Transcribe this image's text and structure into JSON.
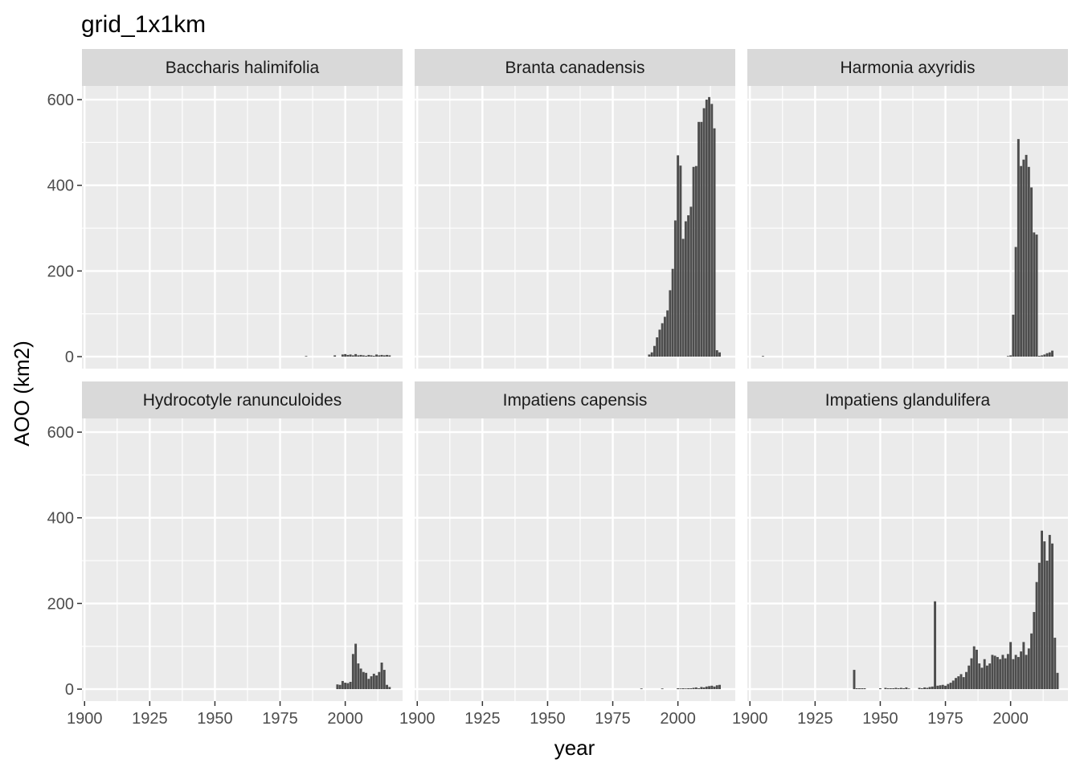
{
  "chart_data": {
    "type": "bar",
    "title": "grid_1x1km",
    "xlabel": "year",
    "ylabel": "AOO (km2)",
    "xlim": [
      1899,
      2022
    ],
    "ylim": [
      -28,
      632
    ],
    "x_ticks": [
      1900,
      1925,
      1950,
      1975,
      2000
    ],
    "y_ticks": [
      0,
      200,
      400,
      600
    ],
    "grid": true,
    "facets": [
      {
        "name": "Baccharis halimifolia",
        "bars": [
          [
            1985,
            1
          ],
          [
            1996,
            3
          ],
          [
            1999,
            5
          ],
          [
            2000,
            6
          ],
          [
            2001,
            4
          ],
          [
            2002,
            5
          ],
          [
            2003,
            3
          ],
          [
            2004,
            6
          ],
          [
            2005,
            3
          ],
          [
            2006,
            4
          ],
          [
            2007,
            3
          ],
          [
            2008,
            2
          ],
          [
            2009,
            4
          ],
          [
            2010,
            3
          ],
          [
            2011,
            2
          ],
          [
            2012,
            5
          ],
          [
            2013,
            3
          ],
          [
            2014,
            4
          ],
          [
            2015,
            3
          ],
          [
            2016,
            4
          ],
          [
            2017,
            3
          ]
        ]
      },
      {
        "name": "Branta canadensis",
        "bars": [
          [
            1989,
            5
          ],
          [
            1990,
            10
          ],
          [
            1991,
            25
          ],
          [
            1992,
            45
          ],
          [
            1993,
            63
          ],
          [
            1994,
            78
          ],
          [
            1995,
            93
          ],
          [
            1996,
            108
          ],
          [
            1997,
            155
          ],
          [
            1998,
            205
          ],
          [
            1999,
            318
          ],
          [
            2000,
            470
          ],
          [
            2001,
            446
          ],
          [
            2002,
            275
          ],
          [
            2003,
            316
          ],
          [
            2004,
            330
          ],
          [
            2005,
            350
          ],
          [
            2006,
            443
          ],
          [
            2007,
            445
          ],
          [
            2008,
            548
          ],
          [
            2009,
            548
          ],
          [
            2010,
            580
          ],
          [
            2011,
            600
          ],
          [
            2012,
            606
          ],
          [
            2013,
            590
          ],
          [
            2014,
            533
          ],
          [
            2015,
            15
          ],
          [
            2016,
            10
          ]
        ]
      },
      {
        "name": "Harmonia axyridis",
        "bars": [
          [
            1905,
            1
          ],
          [
            1999,
            1
          ],
          [
            2000,
            3
          ],
          [
            2001,
            98
          ],
          [
            2002,
            256
          ],
          [
            2003,
            508
          ],
          [
            2004,
            445
          ],
          [
            2005,
            460
          ],
          [
            2006,
            471
          ],
          [
            2007,
            443
          ],
          [
            2008,
            395
          ],
          [
            2009,
            290
          ],
          [
            2010,
            285
          ],
          [
            2011,
            2
          ],
          [
            2012,
            3
          ],
          [
            2013,
            5
          ],
          [
            2014,
            8
          ],
          [
            2015,
            10
          ],
          [
            2016,
            14
          ]
        ]
      },
      {
        "name": "Hydrocotyle ranunculoides",
        "bars": [
          [
            1997,
            11
          ],
          [
            1998,
            10
          ],
          [
            1999,
            19
          ],
          [
            2000,
            15
          ],
          [
            2001,
            14
          ],
          [
            2002,
            17
          ],
          [
            2003,
            82
          ],
          [
            2004,
            106
          ],
          [
            2005,
            60
          ],
          [
            2006,
            48
          ],
          [
            2007,
            40
          ],
          [
            2008,
            38
          ],
          [
            2009,
            24
          ],
          [
            2010,
            30
          ],
          [
            2011,
            36
          ],
          [
            2012,
            32
          ],
          [
            2013,
            40
          ],
          [
            2014,
            62
          ],
          [
            2015,
            45
          ],
          [
            2016,
            10
          ],
          [
            2017,
            5
          ]
        ]
      },
      {
        "name": "Impatiens capensis",
        "bars": [
          [
            1986,
            1
          ],
          [
            1994,
            1
          ],
          [
            2000,
            2
          ],
          [
            2001,
            1
          ],
          [
            2002,
            2
          ],
          [
            2003,
            1
          ],
          [
            2004,
            2
          ],
          [
            2005,
            2
          ],
          [
            2006,
            3
          ],
          [
            2007,
            4
          ],
          [
            2008,
            2
          ],
          [
            2009,
            5
          ],
          [
            2010,
            4
          ],
          [
            2011,
            6
          ],
          [
            2012,
            7
          ],
          [
            2013,
            8
          ],
          [
            2014,
            6
          ],
          [
            2015,
            9
          ],
          [
            2016,
            10
          ]
        ]
      },
      {
        "name": "Impatiens glandulifera",
        "bars": [
          [
            1940,
            45
          ],
          [
            1941,
            2
          ],
          [
            1942,
            2
          ],
          [
            1943,
            2
          ],
          [
            1944,
            2
          ],
          [
            1950,
            2
          ],
          [
            1952,
            3
          ],
          [
            1953,
            2
          ],
          [
            1954,
            2
          ],
          [
            1955,
            2
          ],
          [
            1956,
            3
          ],
          [
            1957,
            2
          ],
          [
            1958,
            3
          ],
          [
            1959,
            2
          ],
          [
            1960,
            4
          ],
          [
            1961,
            1
          ],
          [
            1965,
            3
          ],
          [
            1966,
            2
          ],
          [
            1967,
            4
          ],
          [
            1968,
            3
          ],
          [
            1969,
            5
          ],
          [
            1970,
            6
          ],
          [
            1971,
            205
          ],
          [
            1972,
            8
          ],
          [
            1973,
            9
          ],
          [
            1974,
            10
          ],
          [
            1975,
            8
          ],
          [
            1976,
            12
          ],
          [
            1977,
            15
          ],
          [
            1978,
            20
          ],
          [
            1979,
            26
          ],
          [
            1980,
            30
          ],
          [
            1981,
            35
          ],
          [
            1982,
            28
          ],
          [
            1983,
            40
          ],
          [
            1984,
            55
          ],
          [
            1985,
            72
          ],
          [
            1986,
            100
          ],
          [
            1987,
            92
          ],
          [
            1988,
            60
          ],
          [
            1989,
            50
          ],
          [
            1990,
            70
          ],
          [
            1991,
            55
          ],
          [
            1992,
            60
          ],
          [
            1993,
            80
          ],
          [
            1994,
            78
          ],
          [
            1995,
            75
          ],
          [
            1996,
            70
          ],
          [
            1997,
            80
          ],
          [
            1998,
            72
          ],
          [
            1999,
            82
          ],
          [
            2000,
            110
          ],
          [
            2001,
            70
          ],
          [
            2002,
            80
          ],
          [
            2003,
            75
          ],
          [
            2004,
            88
          ],
          [
            2005,
            110
          ],
          [
            2006,
            80
          ],
          [
            2007,
            95
          ],
          [
            2008,
            130
          ],
          [
            2009,
            180
          ],
          [
            2010,
            250
          ],
          [
            2011,
            295
          ],
          [
            2012,
            370
          ],
          [
            2013,
            345
          ],
          [
            2014,
            300
          ],
          [
            2015,
            360
          ],
          [
            2016,
            340
          ],
          [
            2017,
            120
          ],
          [
            2018,
            38
          ]
        ]
      }
    ]
  }
}
